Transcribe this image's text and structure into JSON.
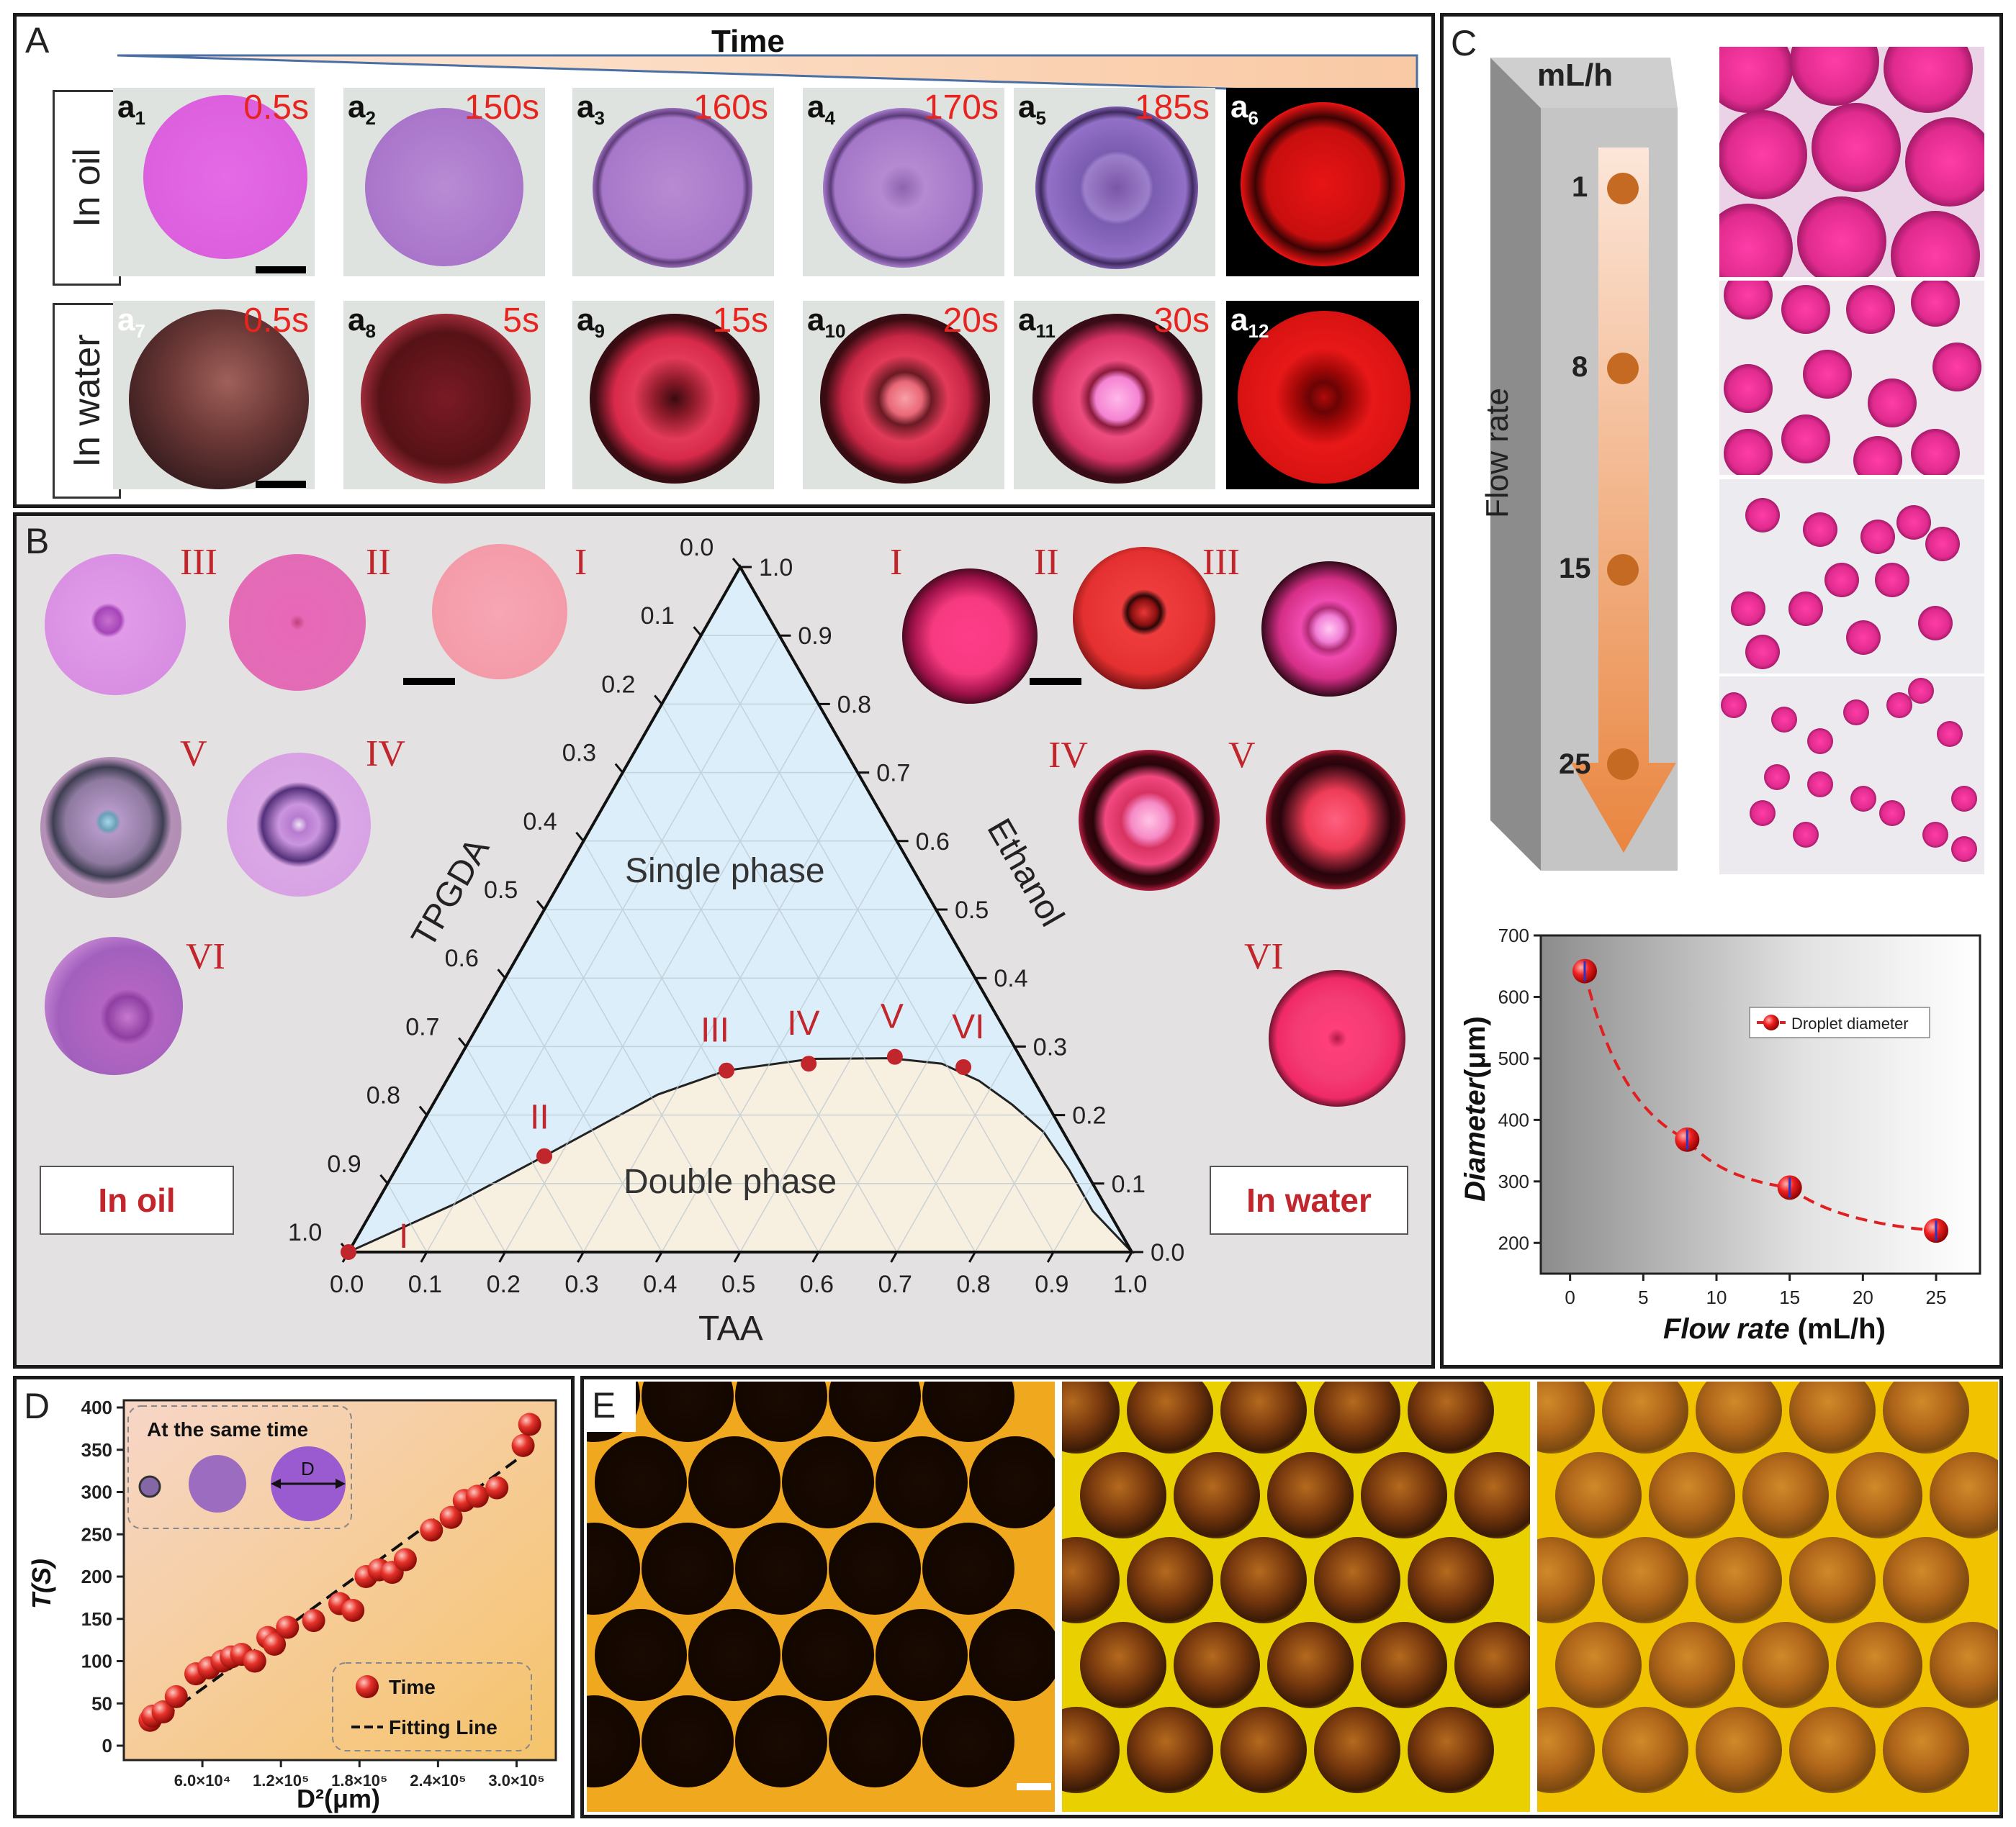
{
  "panel_a": {
    "label": "A",
    "time_label": "Time",
    "rows": [
      {
        "name": "In oil",
        "cells": [
          {
            "sub": "a",
            "idx": "1",
            "time": "0.5s"
          },
          {
            "sub": "a",
            "idx": "2",
            "time": "150s"
          },
          {
            "sub": "a",
            "idx": "3",
            "time": "160s"
          },
          {
            "sub": "a",
            "idx": "4",
            "time": "170s"
          },
          {
            "sub": "a",
            "idx": "5",
            "time": "185s"
          },
          {
            "sub": "a",
            "idx": "6",
            "time": ""
          }
        ]
      },
      {
        "name": "In water",
        "cells": [
          {
            "sub": "a",
            "idx": "7",
            "time": "0.5s"
          },
          {
            "sub": "a",
            "idx": "8",
            "time": "5s"
          },
          {
            "sub": "a",
            "idx": "9",
            "time": "15s"
          },
          {
            "sub": "a",
            "idx": "10",
            "time": "20s"
          },
          {
            "sub": "a",
            "idx": "11",
            "time": "30s"
          },
          {
            "sub": "a",
            "idx": "12",
            "time": ""
          }
        ]
      }
    ]
  },
  "panel_b": {
    "label": "B",
    "oil_label": "In oil",
    "water_label": "In water",
    "oil_romans": [
      "III",
      "II",
      "I",
      "V",
      "IV",
      "VI"
    ],
    "water_romans": [
      "I",
      "II",
      "III",
      "IV",
      "V",
      "VI"
    ],
    "ternary": {
      "left_axis": "TPGDA",
      "right_axis": "Ethanol",
      "bottom_axis": "TAA",
      "single_phase": "Single phase",
      "double_phase": "Double phase",
      "ticks": [
        "0.0",
        "0.1",
        "0.2",
        "0.3",
        "0.4",
        "0.5",
        "0.6",
        "0.7",
        "0.8",
        "0.9",
        "1.0"
      ],
      "points": [
        {
          "label": "I",
          "taa": 0.0,
          "ethanol": 0.0
        },
        {
          "label": "II",
          "taa": 0.18,
          "ethanol": 0.14
        },
        {
          "label": "III",
          "taa": 0.35,
          "ethanol": 0.265
        },
        {
          "label": "IV",
          "taa": 0.45,
          "ethanol": 0.275
        },
        {
          "label": "V",
          "taa": 0.555,
          "ethanol": 0.285
        },
        {
          "label": "VI",
          "taa": 0.65,
          "ethanol": 0.27
        }
      ]
    }
  },
  "panel_c": {
    "label": "C",
    "unit": "mL/h",
    "flow_axis": "Flow rate",
    "flow_values": [
      "1",
      "8",
      "15",
      "25"
    ],
    "chart_data": {
      "type": "line",
      "title": "",
      "x": [
        1,
        8,
        15,
        25
      ],
      "values": [
        642,
        368,
        290,
        220
      ],
      "xlabel_italic": "Flow rate",
      "xlabel_unit": " (mL/h)",
      "ylabel_italic": "Diameter",
      "ylabel_unit": "(μm)",
      "xlim": [
        -2,
        28
      ],
      "ylim": [
        150,
        700
      ],
      "xticks": [
        "0",
        "5",
        "10",
        "15",
        "20",
        "25"
      ],
      "yticks": [
        "200",
        "300",
        "400",
        "500",
        "600",
        "700"
      ],
      "legend": "Droplet diameter"
    }
  },
  "panel_d": {
    "label": "D",
    "inset_title": "At the same time",
    "inset_d": "D",
    "chart_data": {
      "type": "scatter",
      "x": [
        2.0,
        2.2,
        3.0,
        4.0,
        5.5,
        6.5,
        7.5,
        8.2,
        9.0,
        10.0,
        11.0,
        11.5,
        12.5,
        14.5,
        16.5,
        17.5,
        18.5,
        19.5,
        20.5,
        21.5,
        23.5,
        25.0,
        26.0,
        27.0,
        28.5,
        30.5,
        31.0
      ],
      "values": [
        30,
        35,
        40,
        58,
        85,
        92,
        100,
        105,
        108,
        100,
        128,
        120,
        140,
        148,
        168,
        160,
        200,
        208,
        205,
        220,
        255,
        270,
        290,
        295,
        305,
        355,
        380
      ],
      "x_scale_note": "x in 1e4 μm²",
      "xlabel": "D²(μm)",
      "ylabel": "T(S)",
      "xticks": [
        "6.0×10⁴",
        "1.2×10⁵",
        "1.8×10⁵",
        "2.4×10⁵",
        "3.0×10⁵"
      ],
      "yticks": [
        "0",
        "50",
        "100",
        "150",
        "200",
        "250",
        "300",
        "350",
        "400"
      ],
      "ylim": [
        0,
        400
      ],
      "legend_series": "Time",
      "legend_fit": "Fitting Line"
    }
  },
  "panel_e": {
    "label": "E"
  }
}
